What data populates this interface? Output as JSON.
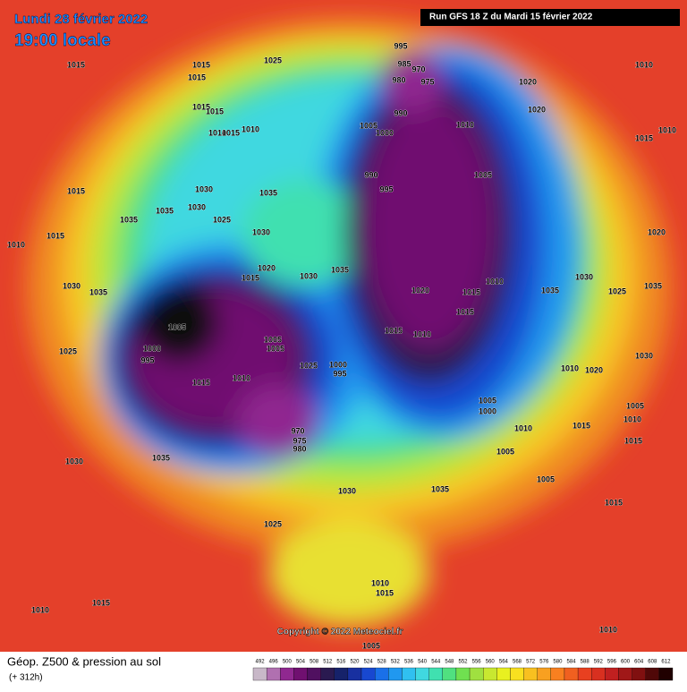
{
  "header": {
    "date": "Lundi 28 février 2022",
    "time": "19:00 locale",
    "run": "Run GFS 18 Z du Mardi 15 février 2022"
  },
  "footer": {
    "title": "Géop. Z500 & pression au sol",
    "lead": "(+ 312h)",
    "copyright": "Copyright © 2022 Meteociel.fr"
  },
  "colorbar": {
    "labels": [
      492,
      496,
      500,
      504,
      508,
      512,
      516,
      520,
      524,
      528,
      532,
      536,
      540,
      544,
      548,
      552,
      556,
      560,
      564,
      568,
      572,
      576,
      580,
      584,
      588,
      592,
      596,
      600,
      604,
      608,
      612
    ],
    "colors": [
      "#c8b8c8",
      "#b070b0",
      "#902890",
      "#701070",
      "#501060",
      "#2a1a50",
      "#16226a",
      "#1830a0",
      "#1848d0",
      "#1a70e8",
      "#2098f0",
      "#30c0f0",
      "#40d8e0",
      "#40e0b0",
      "#50e080",
      "#70e050",
      "#a0e040",
      "#c8e830",
      "#e8f020",
      "#f8e020",
      "#f8c020",
      "#f8a020",
      "#f88020",
      "#f06020",
      "#e84020",
      "#d83020",
      "#c02020",
      "#a01818",
      "#801010",
      "#500808",
      "#200000"
    ]
  },
  "pressure_labels": [
    "1015",
    "1015",
    "1015",
    "1025",
    "995",
    "985",
    "970",
    "975",
    "980",
    "1010",
    "1020",
    "1015",
    "1015",
    "990",
    "1020",
    "1010",
    "1005",
    "1000",
    "1010",
    "1015",
    "1010",
    "1015",
    "1010",
    "1005",
    "990",
    "995",
    "1015",
    "1030",
    "1035",
    "1035",
    "1030",
    "1025",
    "1035",
    "1015",
    "1010",
    "1030",
    "1020",
    "1020",
    "1030",
    "1035",
    "1015",
    "1010",
    "1030",
    "1030",
    "1035",
    "1020",
    "1015",
    "1035",
    "1025",
    "1035",
    "1015",
    "1005",
    "1015",
    "1010",
    "1005",
    "1005",
    "1000",
    "995",
    "1025",
    "1025",
    "1000",
    "995",
    "1010",
    "1020",
    "1015",
    "1010",
    "1030",
    "1005",
    "1000",
    "1010",
    "1015",
    "1005",
    "1010",
    "970",
    "975",
    "980",
    "1005",
    "1015",
    "1035",
    "1030",
    "1005",
    "1035",
    "1030",
    "1015",
    "1025",
    "1010",
    "1015",
    "1015",
    "1010",
    "1010",
    "1005"
  ]
}
